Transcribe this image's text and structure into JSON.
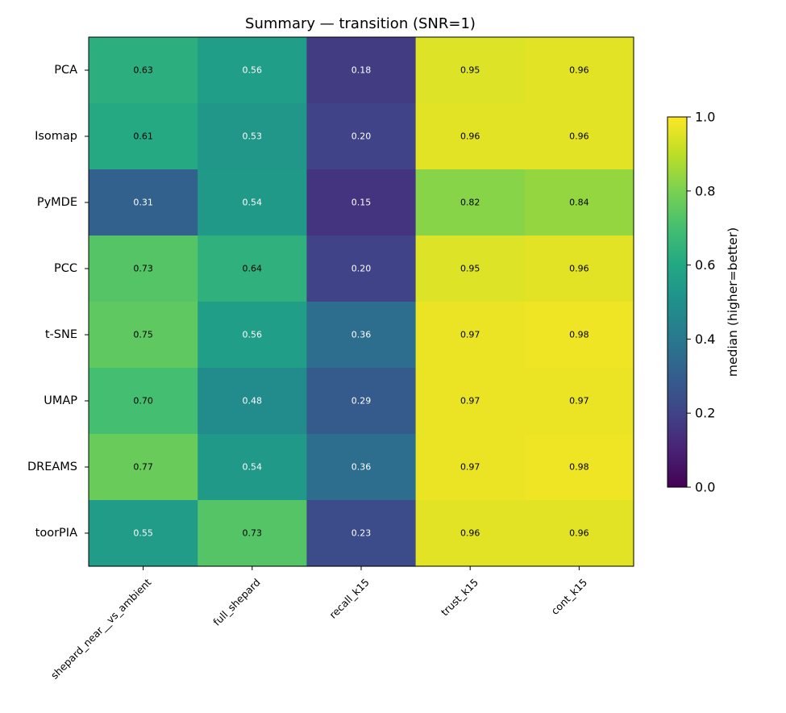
{
  "chart_data": {
    "type": "heatmap",
    "title": "Summary — transition (SNR=1)",
    "rows": [
      "PCA",
      "Isomap",
      "PyMDE",
      "PCC",
      "t-SNE",
      "UMAP",
      "DREAMS",
      "toorPIA"
    ],
    "columns": [
      "shepard_near__vs_ambient",
      "full_shepard",
      "recall_k15",
      "trust_k15",
      "cont_k15"
    ],
    "values": [
      [
        0.63,
        0.56,
        0.18,
        0.95,
        0.96
      ],
      [
        0.61,
        0.53,
        0.2,
        0.96,
        0.96
      ],
      [
        0.31,
        0.54,
        0.15,
        0.82,
        0.84
      ],
      [
        0.73,
        0.64,
        0.2,
        0.95,
        0.96
      ],
      [
        0.75,
        0.56,
        0.36,
        0.97,
        0.98
      ],
      [
        0.7,
        0.48,
        0.29,
        0.97,
        0.97
      ],
      [
        0.77,
        0.54,
        0.36,
        0.97,
        0.98
      ],
      [
        0.55,
        0.73,
        0.23,
        0.96,
        0.96
      ]
    ],
    "value_range": [
      0.0,
      1.0
    ],
    "colormap": "viridis",
    "colorbar": {
      "label": "median (higher=better)",
      "ticks": [
        0.0,
        0.2,
        0.4,
        0.6,
        0.8,
        1.0
      ],
      "tick_labels": [
        "0.0",
        "0.2",
        "0.4",
        "0.6",
        "0.8",
        "1.0"
      ]
    },
    "cell_text_colors": {
      "dark_bg": "#ffffff",
      "light_bg": "#000000",
      "threshold": 0.6
    }
  }
}
